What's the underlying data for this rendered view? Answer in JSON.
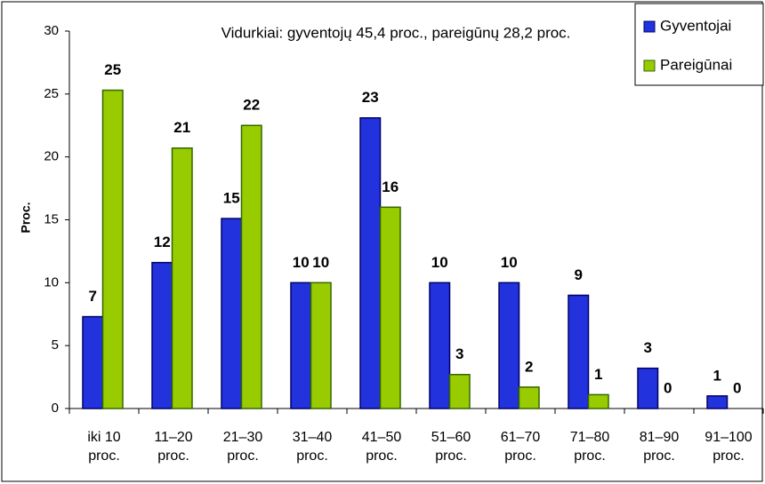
{
  "chart_data": {
    "type": "bar",
    "title": "Vidurkiai:  gyventojų 45,4 proc., pareigūnų 28,2 proc.",
    "y_label": "Proc.",
    "categories": [
      "iki 10 proc.",
      "11–20 proc.",
      "21–30 proc.",
      "31–40 proc.",
      "41–50 proc.",
      "51–60 proc.",
      "61–70 proc.",
      "71–80 proc.",
      "81–90 proc.",
      "91–100 proc."
    ],
    "series": [
      {
        "name": "Gyventojai",
        "color": "#2233dd",
        "values": [
          7.3,
          11.6,
          15.1,
          10,
          23.1,
          10,
          10,
          9,
          3.2,
          1
        ],
        "value_labels": [
          "7",
          "12",
          "15",
          "10",
          "23",
          "10",
          "10",
          "9",
          "3",
          "1"
        ]
      },
      {
        "name": "Pareigūnai",
        "color": "#99cc00",
        "values": [
          25.3,
          20.7,
          22.5,
          10,
          16,
          2.7,
          1.7,
          1.1,
          0,
          0
        ],
        "value_labels": [
          "25",
          "21",
          "22",
          "10",
          "16",
          "3",
          "2",
          "1",
          "0",
          "0"
        ]
      }
    ],
    "ylim": [
      0,
      30
    ],
    "yticks": [
      0,
      5,
      10,
      15,
      20,
      25,
      30
    ],
    "grid": false,
    "legend": "top-right"
  }
}
